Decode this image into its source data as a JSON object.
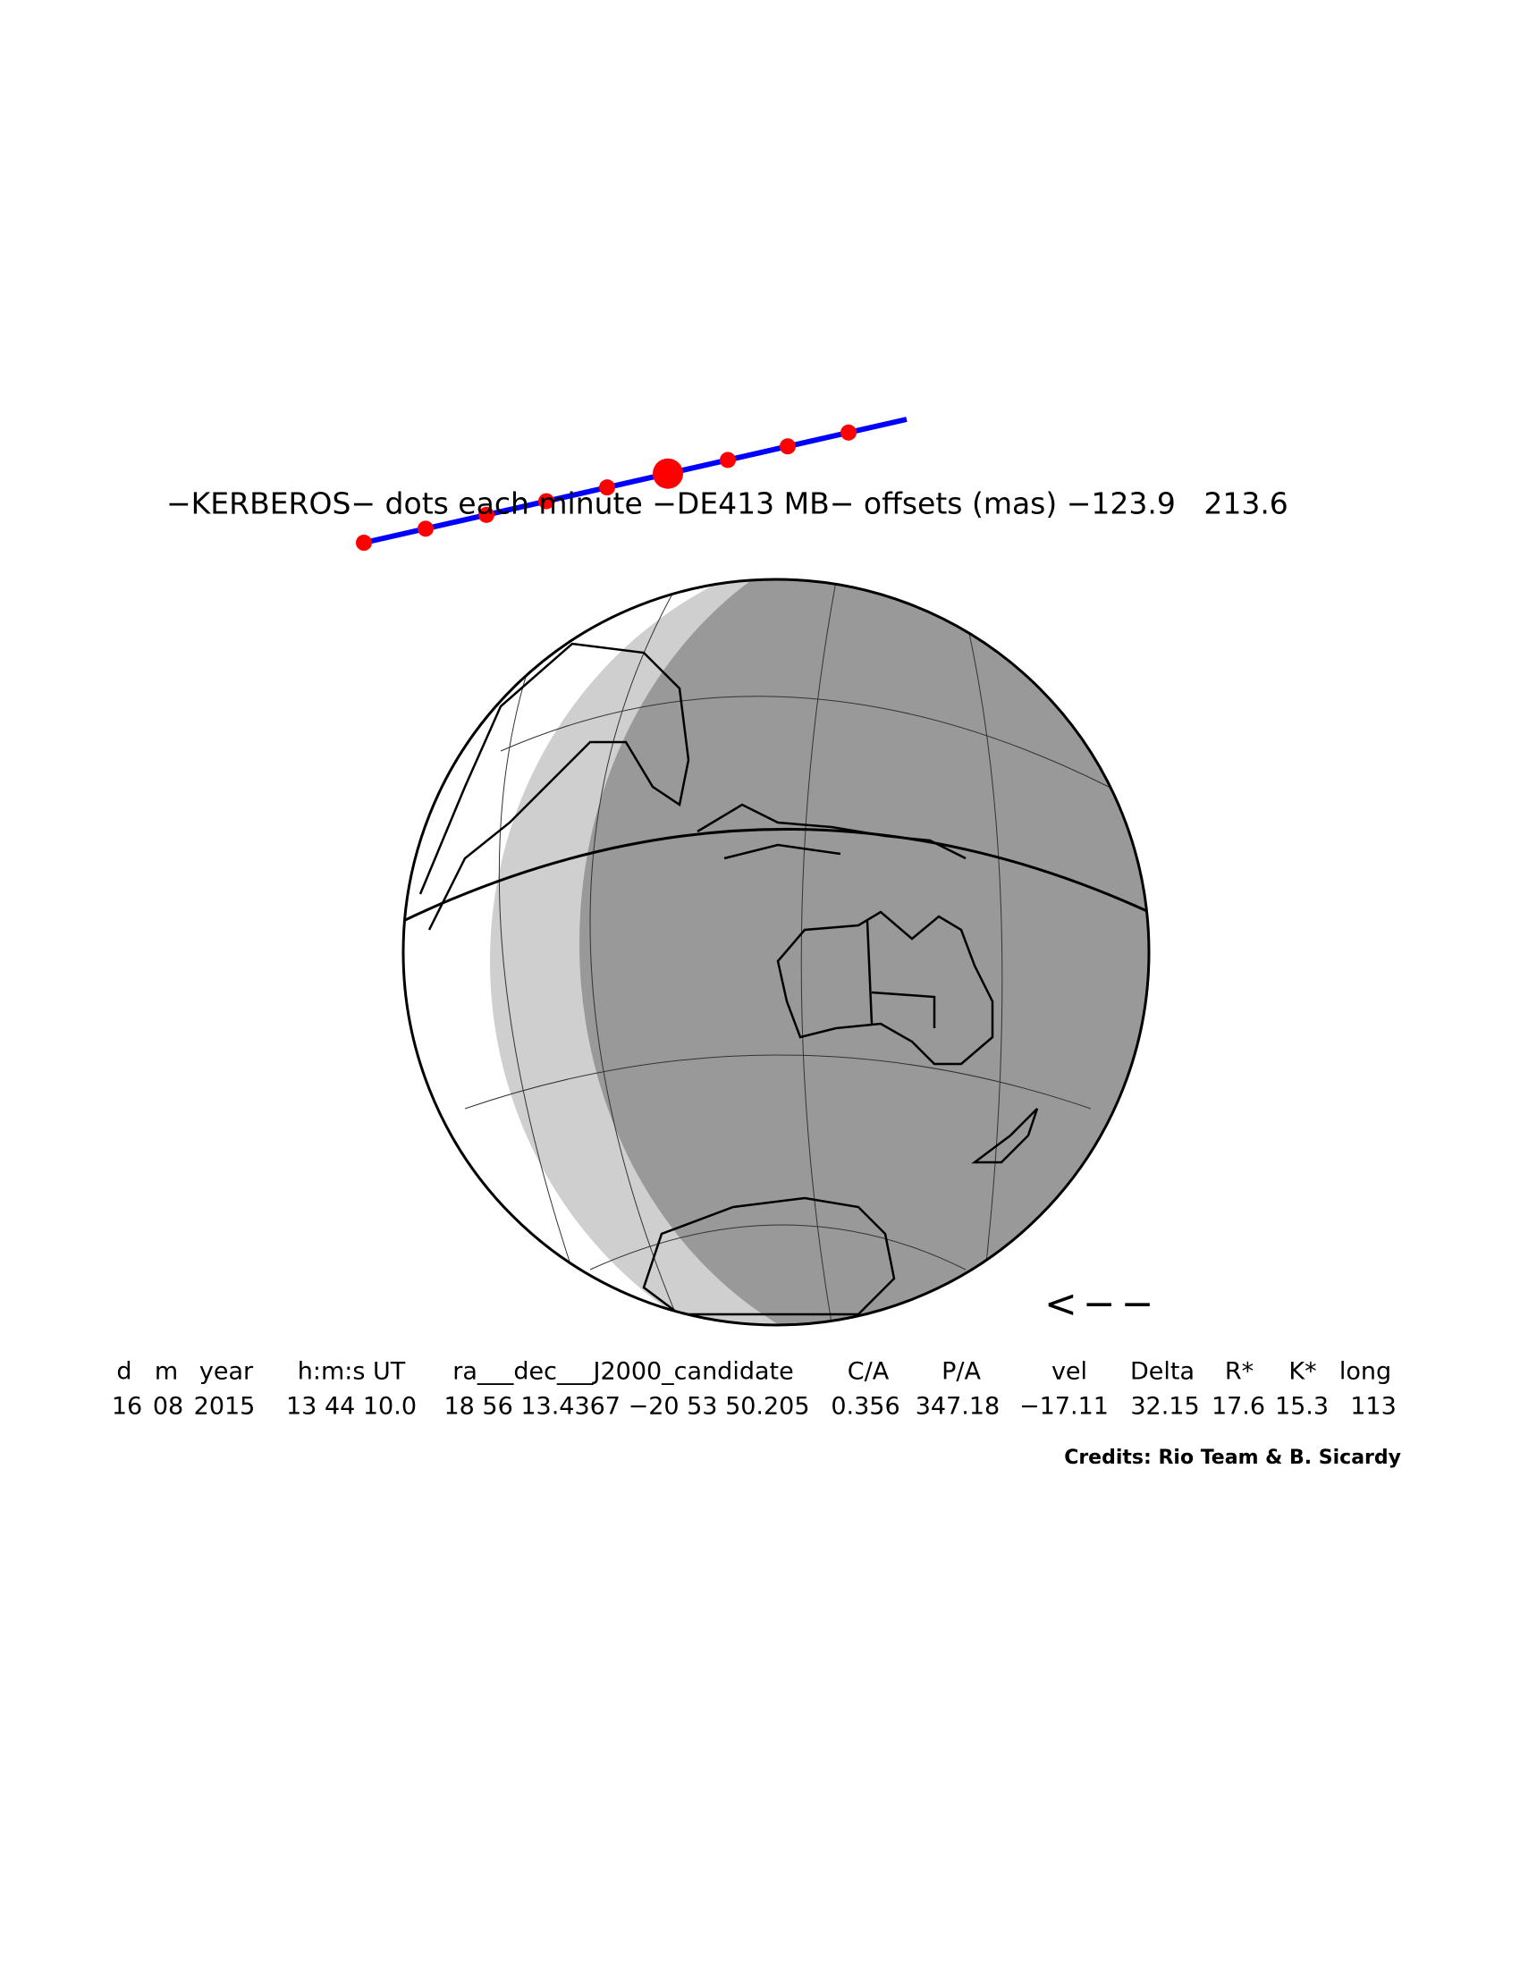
{
  "title": "−KERBEROS− dots each minute −DE413 MB− offsets (mas) −123.9   213.6",
  "direction_arrow": "<−−",
  "table": {
    "headers": [
      "d",
      "m",
      "year",
      "h:m:s UT",
      "ra___dec___J2000_candidate",
      "C/A",
      "P/A",
      "vel",
      "Delta",
      "R*",
      "K*",
      "long"
    ],
    "values": [
      "16",
      "08",
      "2015",
      "13 44 10.0",
      "18 56 13.4367 −20 53 50.205",
      "0.356",
      "347.18",
      "−17.11",
      "32.15",
      "17.6",
      "15.3",
      "113"
    ]
  },
  "credits": "Credits: Rio Team & B. Sicardy"
}
